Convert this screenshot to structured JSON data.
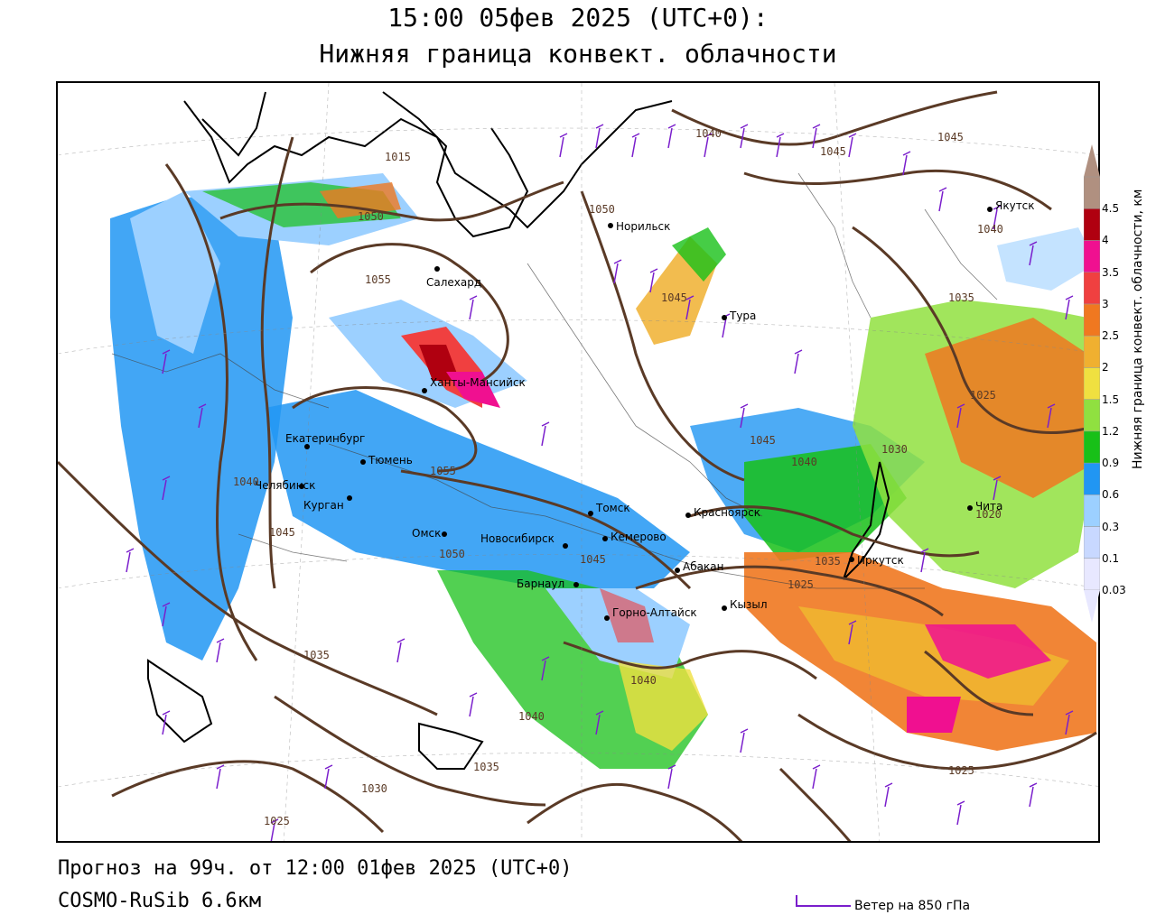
{
  "header": {
    "time_line": "15:00 05фев 2025 (UTC+0):",
    "parameter": "Нижняя граница конвект. облачности"
  },
  "legend": {
    "title": "Нижняя граница конвект. облачности, км",
    "levels": [
      "0.03",
      "0.1",
      "0.3",
      "0.6",
      "0.9",
      "1.2",
      "1.5",
      "2",
      "2.5",
      "3",
      "3.5",
      "4",
      "4.5"
    ],
    "colors": [
      "#e8e8ff",
      "#c8d8ff",
      "#9cd0ff",
      "#2196f3",
      "#18c018",
      "#90e040",
      "#f0e040",
      "#f0b030",
      "#f07820",
      "#f04040",
      "#f01090",
      "#b00010",
      "#b09080"
    ]
  },
  "cities": [
    {
      "name": "Якутск"
    },
    {
      "name": "Норильск"
    },
    {
      "name": "Салехард"
    },
    {
      "name": "Тура"
    },
    {
      "name": "Ханты-Мансийск"
    },
    {
      "name": "Екатеринбург"
    },
    {
      "name": "Тюмень"
    },
    {
      "name": "Курган"
    },
    {
      "name": "Омск"
    },
    {
      "name": "Томск"
    },
    {
      "name": "Красноярск"
    },
    {
      "name": "Новосибирск"
    },
    {
      "name": "Кемерово"
    },
    {
      "name": "Барнаул"
    },
    {
      "name": "Абакан"
    },
    {
      "name": "Иркутск"
    },
    {
      "name": "Кызыл"
    },
    {
      "name": "Горно-Алтайск"
    },
    {
      "name": "Чита"
    },
    {
      "name": "Челябинск"
    }
  ],
  "isobars": [
    "1040",
    "1045",
    "1045",
    "1015",
    "1050",
    "1050",
    "1045",
    "1040",
    "1055",
    "1035",
    "1025",
    "1030",
    "1045",
    "1040",
    "1055",
    "1050",
    "1045",
    "1045",
    "1035",
    "1025",
    "1020",
    "1040",
    "1035",
    "1040",
    "1035",
    "1030",
    "1025",
    "1025"
  ],
  "footer": {
    "forecast": "Прогноз на 99ч. от 12:00 01фев 2025 (UTC+0)",
    "model": "COSMO-RuSib 6.6км"
  },
  "wind_key": {
    "label": "Ветер на 850 гПа",
    "color": "#7a1ecc"
  }
}
